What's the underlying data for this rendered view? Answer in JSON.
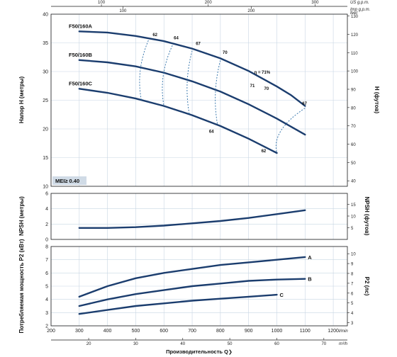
{
  "chart_data": [
    {
      "type": "line",
      "name_id": "head",
      "ylabel": "Напор H (метры)",
      "ylabel_right": "H (футов)",
      "ylim": [
        10,
        40
      ],
      "y_ticks": [
        10,
        15,
        20,
        25,
        30,
        35,
        40
      ],
      "y_right_ticks": [
        40,
        50,
        60,
        70,
        80,
        90,
        100,
        110,
        120,
        130
      ],
      "y_right_unit": "feet",
      "top_axis_usgpm": {
        "unit": "US g.p.m.",
        "ticks": [
          100,
          200,
          300
        ]
      },
      "top_axis_impgpm": {
        "unit": "Imp g.p.m.",
        "ticks": [
          100,
          200
        ]
      },
      "mei_label": "MEI≥ 0.40",
      "series": [
        {
          "name": "F50/160A",
          "x": [
            300,
            400,
            500,
            600,
            700,
            800,
            900,
            1000,
            1050,
            1100
          ],
          "y": [
            37.0,
            36.8,
            36.2,
            35.3,
            34.0,
            32.3,
            30.1,
            27.4,
            25.9,
            24.0
          ]
        },
        {
          "name": "F50/160B",
          "x": [
            300,
            400,
            500,
            600,
            700,
            800,
            900,
            1000,
            1100
          ],
          "y": [
            32.0,
            31.6,
            30.9,
            29.8,
            28.3,
            26.5,
            24.3,
            21.8,
            19.0
          ]
        },
        {
          "name": "F50/160C",
          "x": [
            300,
            400,
            500,
            600,
            700,
            800,
            900,
            1000
          ],
          "y": [
            27.0,
            26.3,
            25.3,
            24.0,
            22.4,
            20.5,
            18.3,
            15.8
          ]
        }
      ],
      "efficiency_labels": [
        "62",
        "64",
        "67",
        "70",
        "η = 71%",
        "70",
        "67",
        "71",
        "64",
        "62"
      ]
    },
    {
      "type": "line",
      "name_id": "npsh",
      "ylabel": "NPSH (метры)",
      "ylabel_right": "NPSH (футов)",
      "ylim": [
        0,
        6
      ],
      "y_ticks": [
        0,
        2,
        4,
        6
      ],
      "y_right_ticks": [
        5,
        10,
        15
      ],
      "series": [
        {
          "name": "",
          "x": [
            300,
            400,
            500,
            600,
            700,
            800,
            900,
            1000,
            1100
          ],
          "y": [
            1.5,
            1.5,
            1.6,
            1.8,
            2.1,
            2.4,
            2.8,
            3.3,
            3.8
          ]
        }
      ]
    },
    {
      "type": "line",
      "name_id": "power",
      "ylabel": "Потребляемая мощность P2 (кВт)",
      "ylabel_right": "P2 (лс)",
      "ylim": [
        2,
        8
      ],
      "y_ticks": [
        2,
        3,
        4,
        5,
        6,
        7,
        8
      ],
      "y_right_ticks": [
        3,
        4,
        5,
        6,
        7,
        8,
        9,
        10
      ],
      "series": [
        {
          "name": "A",
          "x": [
            300,
            400,
            500,
            600,
            700,
            800,
            900,
            1000,
            1100
          ],
          "y": [
            4.2,
            5.0,
            5.6,
            6.0,
            6.3,
            6.6,
            6.8,
            7.0,
            7.2
          ]
        },
        {
          "name": "B",
          "x": [
            300,
            400,
            500,
            600,
            700,
            800,
            900,
            1000,
            1100
          ],
          "y": [
            3.5,
            4.0,
            4.4,
            4.7,
            5.0,
            5.2,
            5.4,
            5.5,
            5.55
          ]
        },
        {
          "name": "C",
          "x": [
            300,
            400,
            500,
            600,
            700,
            800,
            900,
            1000
          ],
          "y": [
            2.9,
            3.2,
            3.5,
            3.7,
            3.9,
            4.05,
            4.2,
            4.35
          ]
        }
      ]
    }
  ],
  "x_axis": {
    "label": "Производительность Q",
    "unit_lmin": "l/min",
    "ticks_lmin": [
      200,
      300,
      400,
      500,
      600,
      700,
      800,
      900,
      1000,
      1100,
      1200
    ],
    "unit_m3h": "m³/h",
    "ticks_m3h": [
      20,
      30,
      40,
      50,
      60,
      70
    ]
  },
  "colors": {
    "curve": "#1b3d6e",
    "iso": "#2d6fa8",
    "grid": "#c8d6e3",
    "mei_bg": "#d0dbe6"
  }
}
